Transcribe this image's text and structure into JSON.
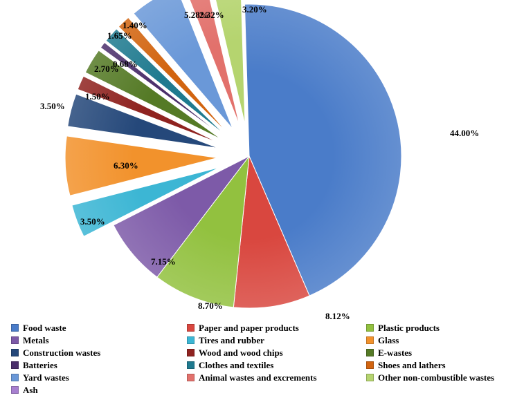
{
  "chart_data": {
    "type": "pie",
    "title": "",
    "slices": [
      {
        "label": "Food waste",
        "value": 44.0,
        "value_label": "44.00%",
        "color": "#4a7cc9",
        "exploded": false
      },
      {
        "label": "Paper and paper products",
        "value": 8.12,
        "value_label": "8.12%",
        "color": "#d9473f",
        "exploded": false
      },
      {
        "label": "Plastic products",
        "value": 8.7,
        "value_label": "8.70%",
        "color": "#92c13f",
        "exploded": false
      },
      {
        "label": "Metals",
        "value": 7.15,
        "value_label": "7.15%",
        "color": "#7d5aa8",
        "exploded": false
      },
      {
        "label": "Tires and rubber",
        "value": 3.5,
        "value_label": "3.50%",
        "color": "#3cb6d4",
        "exploded": true
      },
      {
        "label": "Glass",
        "value": 6.3,
        "value_label": "6.30%",
        "color": "#f2922c",
        "exploded": true
      },
      {
        "label": "Construction wastes",
        "value": 3.5,
        "value_label": "3.50%",
        "color": "#25487a",
        "exploded": true
      },
      {
        "label": "Wood and wood chips",
        "value": 1.5,
        "value_label": "1.50%",
        "color": "#8f2320",
        "exploded": true
      },
      {
        "label": "E-wastes",
        "value": 2.7,
        "value_label": "2.70%",
        "color": "#557a26",
        "exploded": true
      },
      {
        "label": "Batteries",
        "value": 0.68,
        "value_label": "0.68%",
        "color": "#4b2f6b",
        "exploded": true
      },
      {
        "label": "Clothes and textiles",
        "value": 1.65,
        "value_label": "1.65%",
        "color": "#1f7a8f",
        "exploded": true
      },
      {
        "label": "Shoes and lathers",
        "value": 1.4,
        "value_label": "1.40%",
        "color": "#d2640f",
        "exploded": true
      },
      {
        "label": "Yard wastes",
        "value": 5.28,
        "value_label": "5.28%",
        "color": "#6a98d8",
        "exploded": true
      },
      {
        "label": "Animal wastes and excrements",
        "value": 2.32,
        "value_label": "2.32%",
        "color": "#e2716c",
        "exploded": true
      },
      {
        "label": "Other non-combustible wastes",
        "value": 3.2,
        "value_label": "3.20%",
        "color": "#b5d46f",
        "exploded": true
      },
      {
        "label": "Ash",
        "value": 0,
        "value_label": "",
        "color": "#a77fd0",
        "exploded": false
      }
    ],
    "legend": {
      "position": "bottom",
      "columns": 3
    }
  }
}
